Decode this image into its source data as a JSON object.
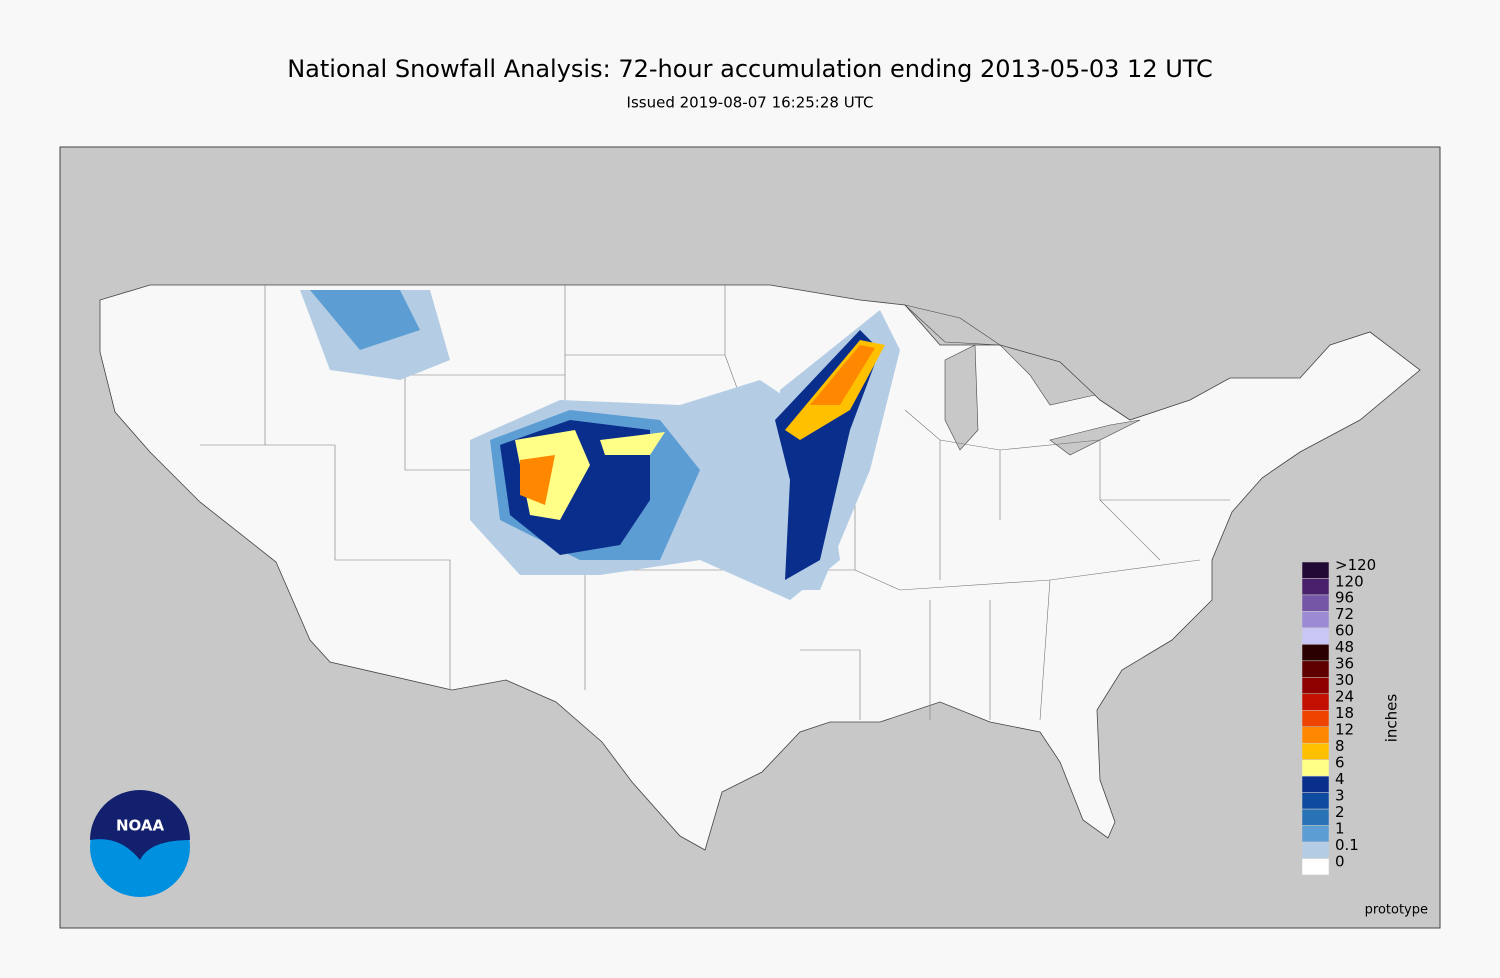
{
  "header": {
    "title": "National Snowfall Analysis: 72-hour accumulation ending 2013-05-03 12 UTC",
    "subtitle": "Issued 2019-08-07 16:25:28 UTC"
  },
  "legend": {
    "label": "inches",
    "entries": [
      {
        "label": ">120",
        "color": "#230a35"
      },
      {
        "label": "120",
        "color": "#4a1f6b"
      },
      {
        "label": "96",
        "color": "#7555a6"
      },
      {
        "label": "72",
        "color": "#9b8ad4"
      },
      {
        "label": "60",
        "color": "#c8c6f5"
      },
      {
        "label": "48",
        "color": "#2a0000"
      },
      {
        "label": "36",
        "color": "#5e0000"
      },
      {
        "label": "30",
        "color": "#8e0000"
      },
      {
        "label": "24",
        "color": "#c41000"
      },
      {
        "label": "18",
        "color": "#ee4400"
      },
      {
        "label": "12",
        "color": "#ff8800"
      },
      {
        "label": "8",
        "color": "#ffc000"
      },
      {
        "label": "6",
        "color": "#ffff88"
      },
      {
        "label": "4",
        "color": "#0a2e8c"
      },
      {
        "label": "3",
        "color": "#0d4aa0"
      },
      {
        "label": "2",
        "color": "#2a72b6"
      },
      {
        "label": "1",
        "color": "#5c9dd3"
      },
      {
        "label": "0.1",
        "color": "#b4cde4"
      },
      {
        "label": "0",
        "color": "#ffffff"
      }
    ]
  },
  "note": "prototype",
  "logo": "NOAA"
}
